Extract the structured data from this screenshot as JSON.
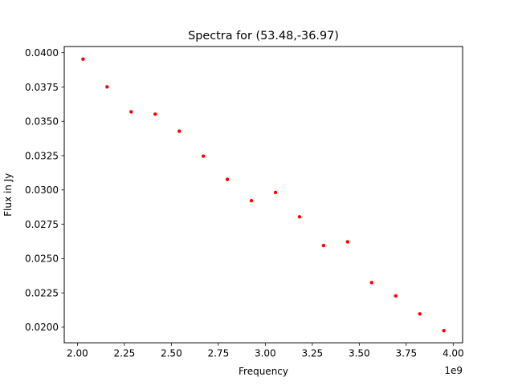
{
  "chart_data": {
    "type": "scatter",
    "title": "Spectra for (53.48,-36.97)",
    "xlabel": "Frequency",
    "ylabel": "Flux in Jy",
    "x_offset_label": "1e9",
    "xlim": [
      1930000000.0,
      4050000000.0
    ],
    "ylim": [
      0.01885,
      0.04045
    ],
    "x_ticks": [
      2000000000.0,
      2250000000.0,
      2500000000.0,
      2750000000.0,
      3000000000.0,
      3250000000.0,
      3500000000.0,
      3750000000.0,
      4000000000.0
    ],
    "x_tick_labels": [
      "2.00",
      "2.25",
      "2.50",
      "2.75",
      "3.00",
      "3.25",
      "3.50",
      "3.75",
      "4.00"
    ],
    "y_ticks": [
      0.02,
      0.0225,
      0.025,
      0.0275,
      0.03,
      0.0325,
      0.035,
      0.0375,
      0.04
    ],
    "y_tick_labels": [
      "0.0200",
      "0.0225",
      "0.0250",
      "0.0275",
      "0.0300",
      "0.0325",
      "0.0350",
      "0.0375",
      "0.0400"
    ],
    "grid": false,
    "marker_color": "#ff0000",
    "points": [
      {
        "x": 2030000000.0,
        "y": 0.03953
      },
      {
        "x": 2158000000.0,
        "y": 0.03751
      },
      {
        "x": 2286000000.0,
        "y": 0.03569
      },
      {
        "x": 2414000000.0,
        "y": 0.03552
      },
      {
        "x": 2542000000.0,
        "y": 0.03428
      },
      {
        "x": 2670000000.0,
        "y": 0.03246
      },
      {
        "x": 2798000000.0,
        "y": 0.03077
      },
      {
        "x": 2926000000.0,
        "y": 0.02922
      },
      {
        "x": 3054000000.0,
        "y": 0.02982
      },
      {
        "x": 3182000000.0,
        "y": 0.02804
      },
      {
        "x": 3310000000.0,
        "y": 0.02595
      },
      {
        "x": 3438000000.0,
        "y": 0.02622
      },
      {
        "x": 3566000000.0,
        "y": 0.02325
      },
      {
        "x": 3694000000.0,
        "y": 0.02228
      },
      {
        "x": 3822000000.0,
        "y": 0.02097
      },
      {
        "x": 3950000000.0,
        "y": 0.01975
      }
    ]
  }
}
